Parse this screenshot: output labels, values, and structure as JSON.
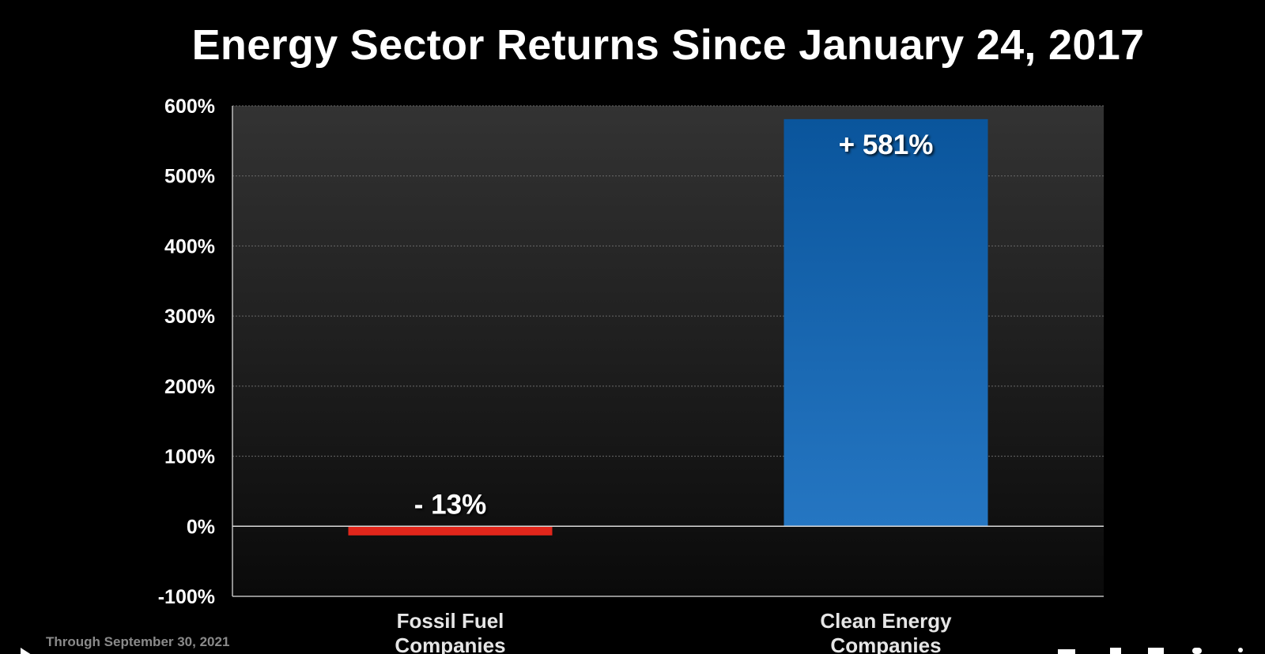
{
  "chart_data": {
    "type": "bar",
    "title": "Energy Sector Returns Since January 24, 2017",
    "xlabel": "",
    "ylabel": "",
    "categories": [
      "Fossil Fuel Companies",
      "Clean Energy Companies"
    ],
    "values": [
      -13,
      581
    ],
    "data_labels": [
      "- 13%",
      "+ 581%"
    ],
    "ylim": [
      -100,
      600
    ],
    "yticks": [
      600,
      500,
      400,
      300,
      200,
      100,
      0,
      -100
    ],
    "ytick_labels": [
      "600%",
      "500%",
      "400%",
      "300%",
      "200%",
      "100%",
      "0%",
      "-100%"
    ],
    "category_labels": [
      [
        "Fossil Fuel",
        "Companies"
      ],
      [
        "Clean Energy",
        "Companies"
      ]
    ],
    "bar_colors": [
      "#e1261b",
      "#1f73bf"
    ],
    "grid": true,
    "legend": "none"
  },
  "footnote": "Through September 30, 2021",
  "player_controls": {
    "icons": [
      "play-icon",
      "captions-icon",
      "volume-icon",
      "fullscreen-icon",
      "settings-icon",
      "more-icon"
    ]
  },
  "colors": {
    "background": "#000000",
    "plot_top": "#333333",
    "plot_bottom": "#0a0a0a",
    "text": "#ffffff",
    "footnote": "#8a8a8a",
    "negative_bar": "#e1261b",
    "positive_bar_top": "#0a559c",
    "positive_bar_bottom": "#2576c2"
  }
}
